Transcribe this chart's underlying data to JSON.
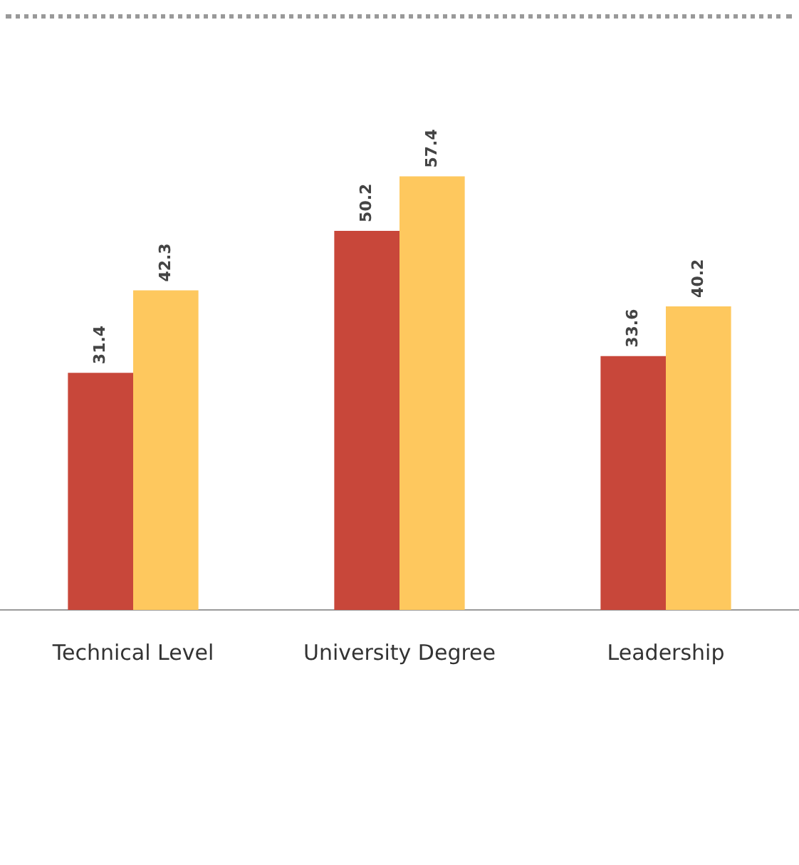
{
  "chart_data": {
    "type": "bar",
    "categories": [
      "Technical Level",
      "University Degree",
      "Leadership"
    ],
    "series": [
      {
        "color": "#c8473a",
        "values": [
          31.4,
          50.2,
          33.6
        ]
      },
      {
        "color": "#fec85e",
        "values": [
          42.3,
          57.4,
          40.2
        ]
      }
    ],
    "data_labels": true,
    "grid": false,
    "legend": false
  }
}
